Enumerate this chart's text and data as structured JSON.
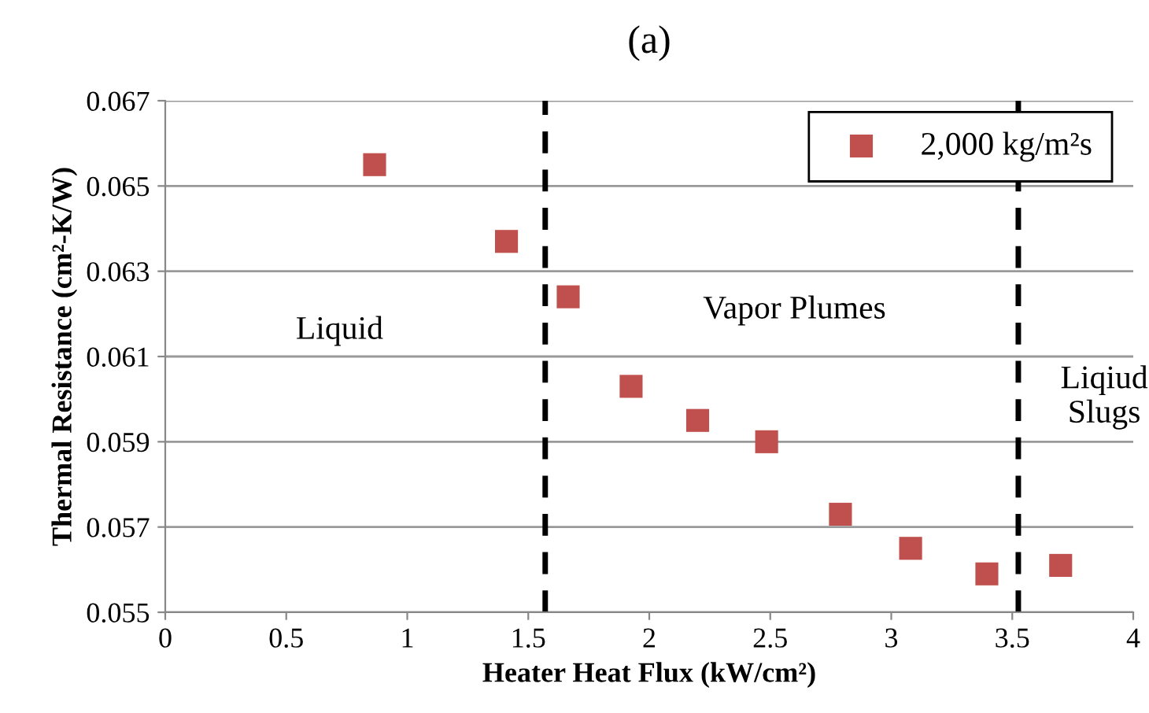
{
  "chart_data": {
    "type": "scatter",
    "title": "(a)",
    "xlabel": "Heater Heat Flux (kW/cm²)",
    "ylabel": "Thermal Resistance (cm²-K/W)",
    "x": [
      0.865,
      1.41,
      1.665,
      1.925,
      2.2,
      2.485,
      2.79,
      3.08,
      3.395,
      3.7
    ],
    "series": [
      {
        "name": "2,000 kg/m²s",
        "color": "#c0504d",
        "values": [
          0.0655,
          0.0637,
          0.0624,
          0.0603,
          0.0595,
          0.059,
          0.0573,
          0.0565,
          0.0559,
          0.0561
        ]
      }
    ],
    "ref_lines": [
      {
        "axis": "x",
        "value": 1.57,
        "color": "#000000",
        "line_style": "dashed"
      },
      {
        "axis": "x",
        "value": 3.525,
        "color": "#000000",
        "line_style": "dashed"
      }
    ],
    "marker": "square",
    "xlim": [
      0,
      4
    ],
    "xticks": [
      0,
      0.5,
      1,
      1.5,
      2,
      2.5,
      3,
      3.5,
      4
    ],
    "ylim": [
      0.055,
      0.067
    ],
    "yticks": [
      0.055,
      0.057,
      0.059,
      0.061,
      0.063,
      0.065,
      0.067
    ],
    "grid": "y",
    "legend": "top right",
    "annotations": [
      "Liquid",
      "Vapor Plumes",
      "Liqiud\nSlugs"
    ]
  }
}
